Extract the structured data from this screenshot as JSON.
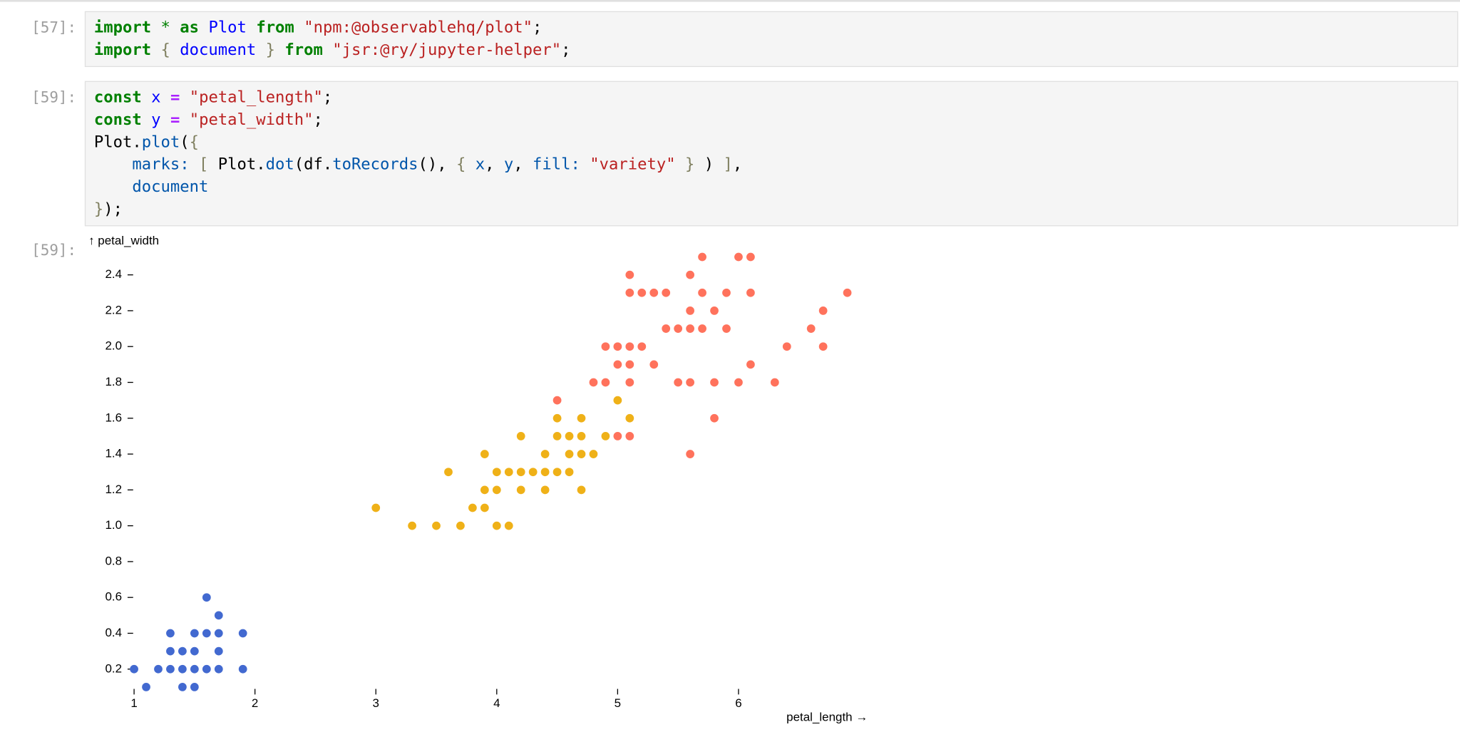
{
  "cells": [
    {
      "prompt": "[57]:",
      "lines": [
        [
          [
            "import",
            "#008000",
            true
          ],
          [
            " "
          ],
          [
            "*",
            "#008000"
          ],
          [
            " "
          ],
          [
            "as",
            "#008000",
            true
          ],
          [
            " "
          ],
          [
            "Plot",
            "#0000ff"
          ],
          [
            " "
          ],
          [
            "from",
            "#008000",
            true
          ],
          [
            " "
          ],
          [
            "\"npm:@observablehq/plot\"",
            "#ba2121"
          ],
          [
            ";"
          ]
        ],
        [
          [
            "import",
            "#008000",
            true
          ],
          [
            " "
          ],
          [
            "{",
            "#7f7f5f"
          ],
          [
            " "
          ],
          [
            "document",
            "#0000ff"
          ],
          [
            " "
          ],
          [
            "}",
            "#7f7f5f"
          ],
          [
            " "
          ],
          [
            "from",
            "#008000",
            true
          ],
          [
            " "
          ],
          [
            "\"jsr:@ry/jupyter-helper\"",
            "#ba2121"
          ],
          [
            ";"
          ]
        ]
      ]
    },
    {
      "prompt": "[59]:",
      "lines": [
        [
          [
            "const",
            "#008000",
            true
          ],
          [
            " "
          ],
          [
            "x",
            "#0000ff"
          ],
          [
            " "
          ],
          [
            "=",
            "#aa22ff",
            true
          ],
          [
            " "
          ],
          [
            "\"petal_length\"",
            "#ba2121"
          ],
          [
            ";"
          ]
        ],
        [
          [
            "const",
            "#008000",
            true
          ],
          [
            " "
          ],
          [
            "y",
            "#0000ff"
          ],
          [
            " "
          ],
          [
            "=",
            "#aa22ff",
            true
          ],
          [
            " "
          ],
          [
            "\"petal_width\"",
            "#ba2121"
          ],
          [
            ";"
          ]
        ],
        [
          [
            "Plot."
          ],
          [
            "plot",
            "#0055aa"
          ],
          [
            "("
          ],
          [
            "{",
            "#7f7f5f"
          ]
        ],
        [
          [
            "    marks:",
            "#0055aa"
          ],
          [
            " [ ",
            "#7f7f5f"
          ],
          [
            "Plot."
          ],
          [
            "dot",
            "#0055aa"
          ],
          [
            "(df."
          ],
          [
            "toRecords",
            "#0055aa"
          ],
          [
            "(), "
          ],
          [
            "{ ",
            "#7f7f5f"
          ],
          [
            "x",
            "#0055aa"
          ],
          [
            ", "
          ],
          [
            "y",
            "#0055aa"
          ],
          [
            ", "
          ],
          [
            "fill:",
            "#0055aa"
          ],
          [
            " "
          ],
          [
            "\"variety\"",
            "#ba2121"
          ],
          [
            " }",
            "#7f7f5f"
          ],
          [
            " ) "
          ],
          [
            "]",
            "#7f7f5f"
          ],
          [
            ","
          ]
        ],
        [
          [
            "    document",
            "#0055aa"
          ]
        ],
        [
          [
            "}",
            "#7f7f5f"
          ],
          [
            ");"
          ]
        ]
      ]
    }
  ],
  "output": {
    "prompt": "[59]:"
  },
  "chart_data": {
    "type": "scatter",
    "y_label": "↑ petal_width",
    "x_label": "petal_length →",
    "xlim": [
      1,
      6.9
    ],
    "ylim": [
      0.1,
      2.5
    ],
    "xticks": [
      1,
      2,
      3,
      4,
      5,
      6
    ],
    "yticks": [
      0.2,
      0.4,
      0.6,
      0.8,
      {
        "value": 1,
        "label": "1.0"
      },
      1.2,
      1.4,
      1.6,
      1.8,
      {
        "value": 2,
        "label": "2.0"
      },
      2.2,
      2.4
    ],
    "grid": false,
    "series": [
      {
        "color": "#4269d0",
        "x": [
          1.0,
          1.2,
          1.3,
          1.4,
          1.5,
          1.6,
          1.7,
          1.9,
          1.1,
          1.4,
          1.5,
          1.3,
          1.4,
          1.5,
          1.7,
          1.3,
          1.5,
          1.6,
          1.7,
          1.9,
          1.7,
          1.6
        ],
        "values": [
          0.2,
          0.2,
          0.2,
          0.2,
          0.2,
          0.2,
          0.2,
          0.2,
          0.1,
          0.1,
          0.1,
          0.3,
          0.3,
          0.3,
          0.3,
          0.4,
          0.4,
          0.4,
          0.4,
          0.4,
          0.5,
          0.6
        ]
      },
      {
        "color": "#efb118",
        "x": [
          3.3,
          3.5,
          3.7,
          4.0,
          4.1,
          3.0,
          3.8,
          3.9,
          3.9,
          4.0,
          4.2,
          4.4,
          4.7,
          3.6,
          4.0,
          4.1,
          4.2,
          4.3,
          4.4,
          4.5,
          4.6,
          3.9,
          4.4,
          4.6,
          4.7,
          4.8,
          4.2,
          4.5,
          4.6,
          4.7,
          4.9,
          4.5,
          4.7,
          5.1,
          5.0
        ],
        "values": [
          1.0,
          1.0,
          1.0,
          1.0,
          1.0,
          1.1,
          1.1,
          1.1,
          1.2,
          1.2,
          1.2,
          1.2,
          1.2,
          1.3,
          1.3,
          1.3,
          1.3,
          1.3,
          1.3,
          1.3,
          1.3,
          1.4,
          1.4,
          1.4,
          1.4,
          1.4,
          1.5,
          1.5,
          1.5,
          1.5,
          1.5,
          1.6,
          1.6,
          1.6,
          1.7
        ]
      },
      {
        "color": "#ff725c",
        "x": [
          5.6,
          5.0,
          5.1,
          5.8,
          4.5,
          4.8,
          4.9,
          5.1,
          5.5,
          5.6,
          5.8,
          6.0,
          6.3,
          5.0,
          5.1,
          5.3,
          6.1,
          4.9,
          5.0,
          5.1,
          5.2,
          6.4,
          6.7,
          5.4,
          5.5,
          5.6,
          5.7,
          5.9,
          6.6,
          5.6,
          5.8,
          6.7,
          5.1,
          5.2,
          5.3,
          5.4,
          5.7,
          5.9,
          6.1,
          6.9,
          5.1,
          5.6,
          5.7,
          6.0,
          6.1
        ],
        "values": [
          1.4,
          1.5,
          1.5,
          1.6,
          1.7,
          1.8,
          1.8,
          1.8,
          1.8,
          1.8,
          1.8,
          1.8,
          1.8,
          1.9,
          1.9,
          1.9,
          1.9,
          2.0,
          2.0,
          2.0,
          2.0,
          2.0,
          2.0,
          2.1,
          2.1,
          2.1,
          2.1,
          2.1,
          2.1,
          2.2,
          2.2,
          2.2,
          2.3,
          2.3,
          2.3,
          2.3,
          2.3,
          2.3,
          2.3,
          2.3,
          2.4,
          2.4,
          2.5,
          2.5,
          2.5
        ]
      }
    ]
  }
}
